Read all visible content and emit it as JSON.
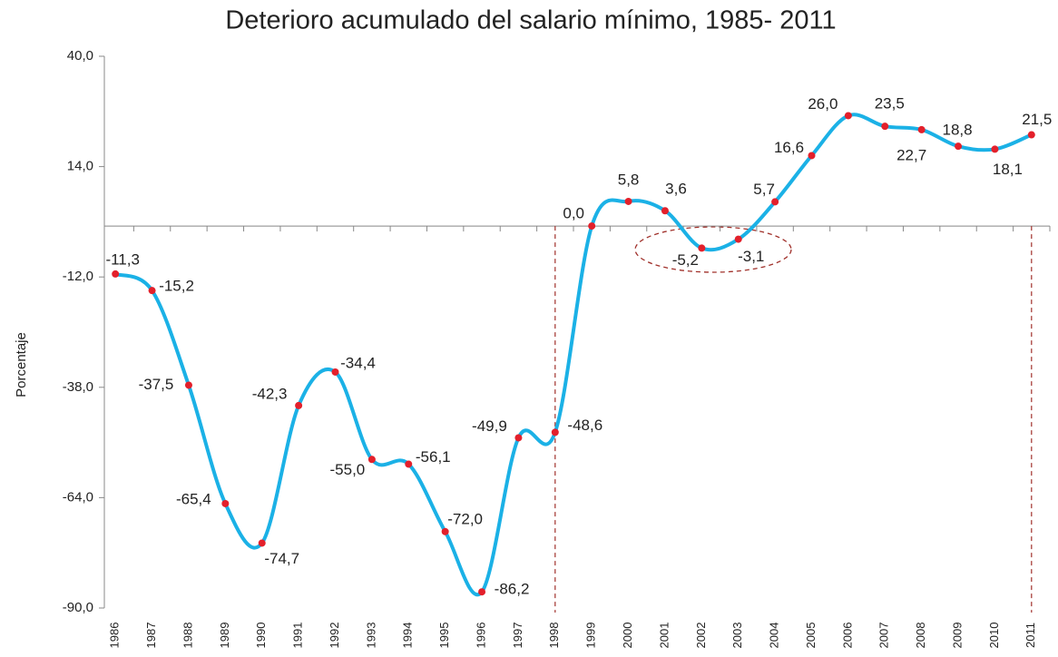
{
  "chart_data": {
    "type": "line",
    "title": "Deterioro acumulado del salario mínimo, 1985- 2011",
    "y_label": "Porcentaje",
    "categories": [
      "1986",
      "1987",
      "1988",
      "1989",
      "1990",
      "1991",
      "1992",
      "1993",
      "1994",
      "1995",
      "1996",
      "1997",
      "1998",
      "1999",
      "2000",
      "2001",
      "2002",
      "2003",
      "2004",
      "2005",
      "2006",
      "2007",
      "2008",
      "2009",
      "2010",
      "2011"
    ],
    "series": [
      {
        "name": "Deterioro acumulado",
        "color": "#1bb1e6",
        "marker_color": "#e3202b",
        "values": [
          -11.3,
          -15.2,
          -37.5,
          -65.4,
          -74.7,
          -42.3,
          -34.4,
          -55.0,
          -56.1,
          -72.0,
          -86.2,
          -49.9,
          -48.6,
          0.0,
          5.8,
          3.6,
          -5.2,
          -3.1,
          5.7,
          16.6,
          26.0,
          23.5,
          22.7,
          18.8,
          18.1,
          21.5
        ],
        "value_labels": [
          "-11,3",
          "-15,2",
          "-37,5",
          "-65,4",
          "-74,7",
          "-42,3",
          "-34,4",
          "-55,0",
          "-56,1",
          "-72,0",
          "-86,2",
          "-49,9",
          "-48,6",
          "0,0",
          "5,8",
          "3,6",
          "-5,2",
          "-3,1",
          "5,7",
          "16,6",
          "26,0",
          "23,5",
          "22,7",
          "18,8",
          "18,1",
          "21,5"
        ]
      }
    ],
    "ylim": [
      -90,
      40
    ],
    "yticks": [
      {
        "value": -90,
        "label": "-90,0"
      },
      {
        "value": -64,
        "label": "-64,0"
      },
      {
        "value": -38,
        "label": "-38,0"
      },
      {
        "value": -12,
        "label": "-12,0"
      },
      {
        "value": 14,
        "label": "14,0"
      },
      {
        "value": 40,
        "label": "40,0"
      }
    ],
    "reference_lines": [
      "1998",
      "2011"
    ]
  }
}
